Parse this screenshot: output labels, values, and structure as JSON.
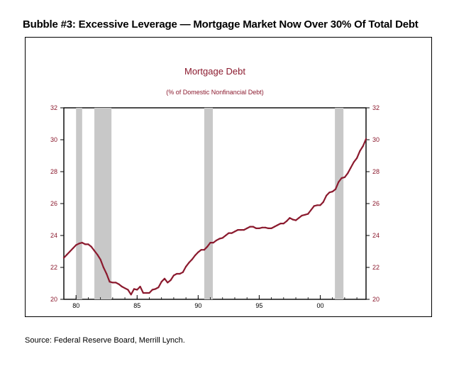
{
  "page": {
    "title": "Bubble #3: Excessive Leverage — Mortgage Market Now Over 30% Of Total Debt",
    "source": "Source: Federal Reserve Board, Merrill Lynch."
  },
  "chart_data": {
    "type": "line",
    "title": "Mortgage Debt",
    "subtitle": "(% of Domestic Nonfinancial Debt)",
    "xlabel": "",
    "ylabel": "",
    "xlim": [
      1979.0,
      2003.75
    ],
    "ylim": [
      20,
      32
    ],
    "y_ticks": [
      20,
      22,
      24,
      26,
      28,
      30,
      32
    ],
    "x_tick_labels": [
      {
        "x": 1980,
        "label": "80"
      },
      {
        "x": 1985,
        "label": "85"
      },
      {
        "x": 1990,
        "label": "90"
      },
      {
        "x": 1995,
        "label": "95"
      },
      {
        "x": 2000,
        "label": "00"
      }
    ],
    "y_axes": "both",
    "grid": false,
    "legend": "none",
    "line_color": "#8b1a2e",
    "title_color": "#8b1a2e",
    "recession_color": "#c8c8c8",
    "recessions": [
      [
        1980.0,
        1980.5
      ],
      [
        1981.5,
        1982.9
      ],
      [
        1990.5,
        1991.2
      ],
      [
        2001.2,
        2001.9
      ]
    ],
    "series": [
      {
        "x": [
          1979.0,
          1979.25,
          1979.5,
          1979.75,
          1980.0,
          1980.25,
          1980.5,
          1980.75,
          1981.0,
          1981.25,
          1981.5,
          1981.75,
          1982.0,
          1982.25,
          1982.5,
          1982.75,
          1983.0,
          1983.25,
          1983.5,
          1983.75,
          1984.0,
          1984.25,
          1984.5,
          1984.75,
          1985.0,
          1985.25,
          1985.5,
          1985.75,
          1986.0,
          1986.25,
          1986.5,
          1986.75,
          1987.0,
          1987.25,
          1987.5,
          1987.75,
          1988.0,
          1988.25,
          1988.5,
          1988.75,
          1989.0,
          1989.25,
          1989.5,
          1989.75,
          1990.0,
          1990.25,
          1990.5,
          1990.75,
          1991.0,
          1991.25,
          1991.5,
          1991.75,
          1992.0,
          1992.25,
          1992.5,
          1992.75,
          1993.0,
          1993.25,
          1993.5,
          1993.75,
          1994.0,
          1994.25,
          1994.5,
          1994.75,
          1995.0,
          1995.25,
          1995.5,
          1995.75,
          1996.0,
          1996.25,
          1996.5,
          1996.75,
          1997.0,
          1997.25,
          1997.5,
          1997.75,
          1998.0,
          1998.25,
          1998.5,
          1998.75,
          1999.0,
          1999.25,
          1999.5,
          1999.75,
          2000.0,
          2000.25,
          2000.5,
          2000.75,
          2001.0,
          2001.25,
          2001.5,
          2001.75,
          2002.0,
          2002.25,
          2002.5,
          2002.75,
          2003.0,
          2003.25,
          2003.5,
          2003.75
        ],
        "values": [
          22.6,
          22.8,
          23.0,
          23.2,
          23.4,
          23.5,
          23.55,
          23.45,
          23.45,
          23.3,
          23.05,
          22.8,
          22.5,
          22.0,
          21.6,
          21.1,
          21.05,
          21.05,
          20.95,
          20.8,
          20.7,
          20.6,
          20.3,
          20.65,
          20.6,
          20.8,
          20.4,
          20.4,
          20.4,
          20.6,
          20.65,
          20.75,
          21.1,
          21.3,
          21.05,
          21.2,
          21.5,
          21.6,
          21.6,
          21.7,
          22.05,
          22.3,
          22.5,
          22.75,
          22.95,
          23.1,
          23.1,
          23.3,
          23.55,
          23.55,
          23.7,
          23.8,
          23.85,
          24.0,
          24.15,
          24.15,
          24.25,
          24.35,
          24.35,
          24.35,
          24.45,
          24.55,
          24.55,
          24.45,
          24.45,
          24.5,
          24.5,
          24.45,
          24.45,
          24.55,
          24.65,
          24.75,
          24.75,
          24.9,
          25.1,
          25.0,
          24.95,
          25.1,
          25.25,
          25.3,
          25.35,
          25.6,
          25.85,
          25.9,
          25.9,
          26.1,
          26.5,
          26.7,
          26.75,
          26.9,
          27.35,
          27.6,
          27.65,
          27.9,
          28.25,
          28.6,
          28.85,
          29.3,
          29.6,
          30.05
        ]
      }
    ]
  }
}
